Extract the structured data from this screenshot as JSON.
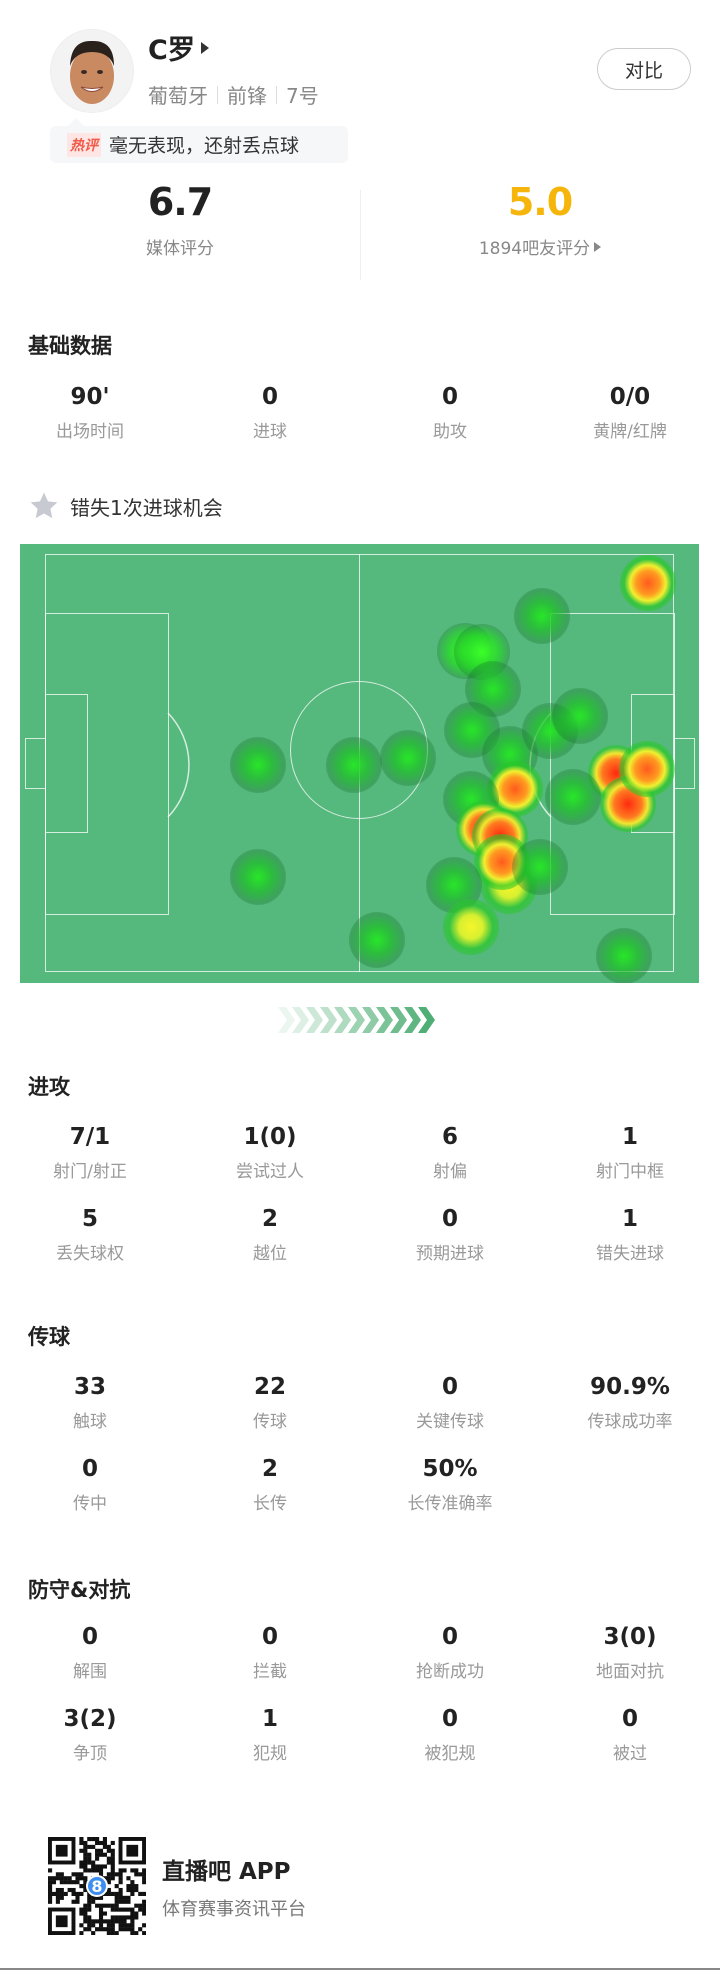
{
  "player": {
    "name": "C罗",
    "country": "葡萄牙",
    "position": "前锋",
    "number": "7号",
    "compare_label": "对比",
    "hot_comment": {
      "tag": "热评",
      "text": "毫无表现，还射丢点球"
    }
  },
  "ratings": {
    "media": {
      "value": "6.7",
      "label": "媒体评分"
    },
    "fans": {
      "value": "5.0",
      "label": "1894吧友评分",
      "color": "#f5b50a"
    }
  },
  "basic": {
    "title": "基础数据",
    "items": [
      {
        "value": "90'",
        "label": "出场时间"
      },
      {
        "value": "0",
        "label": "进球"
      },
      {
        "value": "0",
        "label": "助攻"
      },
      {
        "value": "0/0",
        "label": "黄牌/红牌"
      }
    ]
  },
  "highlight": {
    "icon": "star-icon",
    "text": "错失1次进球机会"
  },
  "heatmap": {
    "pitch_color": "#55b87c"
  },
  "attack": {
    "title": "进攻",
    "items": [
      {
        "value": "7/1",
        "label": "射门/射正"
      },
      {
        "value": "1(0)",
        "label": "尝试过人"
      },
      {
        "value": "6",
        "label": "射偏"
      },
      {
        "value": "1",
        "label": "射门中框"
      },
      {
        "value": "5",
        "label": "丢失球权"
      },
      {
        "value": "2",
        "label": "越位"
      },
      {
        "value": "0",
        "label": "预期进球"
      },
      {
        "value": "1",
        "label": "错失进球"
      }
    ]
  },
  "passing": {
    "title": "传球",
    "items": [
      {
        "value": "33",
        "label": "触球"
      },
      {
        "value": "22",
        "label": "传球"
      },
      {
        "value": "0",
        "label": "关键传球"
      },
      {
        "value": "90.9%",
        "label": "传球成功率"
      },
      {
        "value": "0",
        "label": "传中"
      },
      {
        "value": "2",
        "label": "长传"
      },
      {
        "value": "50%",
        "label": "长传准确率"
      }
    ]
  },
  "defense": {
    "title": "防守&对抗",
    "items": [
      {
        "value": "0",
        "label": "解围"
      },
      {
        "value": "0",
        "label": "拦截"
      },
      {
        "value": "0",
        "label": "抢断成功"
      },
      {
        "value": "3(0)",
        "label": "地面对抗"
      },
      {
        "value": "3(2)",
        "label": "争顶"
      },
      {
        "value": "1",
        "label": "犯规"
      },
      {
        "value": "0",
        "label": "被犯规"
      },
      {
        "value": "0",
        "label": "被过"
      }
    ]
  },
  "footer": {
    "app_name": "直播吧 APP",
    "tagline": "体育赛事资讯平台",
    "qr_badge": "8"
  }
}
